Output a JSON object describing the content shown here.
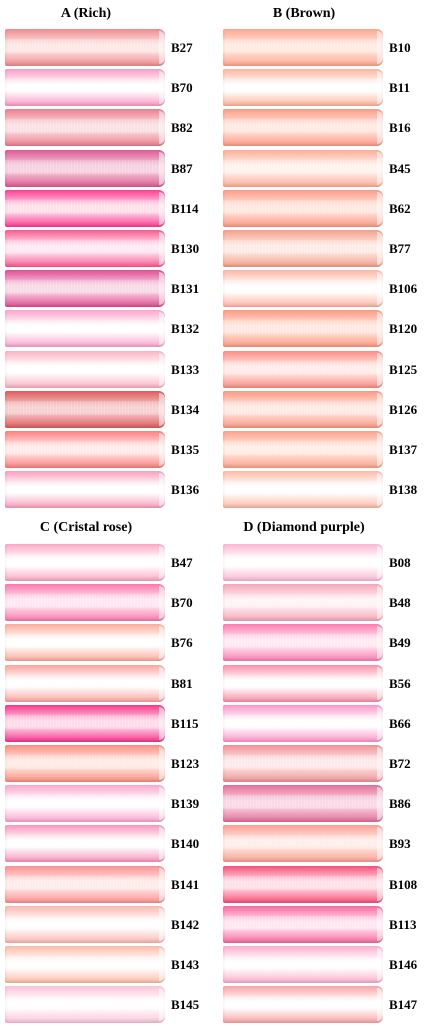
{
  "groups": [
    {
      "title": "A  (Rich)",
      "swatches": [
        {
          "code": "B27",
          "color": "#ef8c8e",
          "hi": "#fbe2e0"
        },
        {
          "code": "B70",
          "color": "#fb9bc4",
          "hi": "#ffffff"
        },
        {
          "code": "B82",
          "color": "#ee7e8e",
          "hi": "#f9d9dc"
        },
        {
          "code": "B87",
          "color": "#dd5c94",
          "hi": "#f4c5d8"
        },
        {
          "code": "B114",
          "color": "#fa3f94",
          "hi": "#ffd7e6"
        },
        {
          "code": "B130",
          "color": "#f95b92",
          "hi": "#ffe3ee"
        },
        {
          "code": "B131",
          "color": "#df4f94",
          "hi": "#f7cfe1"
        },
        {
          "code": "B132",
          "color": "#fca4cc",
          "hi": "#ffffff"
        },
        {
          "code": "B133",
          "color": "#fbb3c2",
          "hi": "#ffffff"
        },
        {
          "code": "B134",
          "color": "#e05c5e",
          "hi": "#f4c4c4"
        },
        {
          "code": "B135",
          "color": "#fd7f80",
          "hi": "#ffe6e3"
        },
        {
          "code": "B136",
          "color": "#fb9fbc",
          "hi": "#ffffff"
        }
      ]
    },
    {
      "title": "B (Brown)",
      "swatches": [
        {
          "code": "B10",
          "color": "#fda690",
          "hi": "#ffe4da"
        },
        {
          "code": "B11",
          "color": "#fdb59d",
          "hi": "#ffffff"
        },
        {
          "code": "B16",
          "color": "#fd9a84",
          "hi": "#ffe3da"
        },
        {
          "code": "B45",
          "color": "#fcae99",
          "hi": "#fff0ea"
        },
        {
          "code": "B62",
          "color": "#fc9c87",
          "hi": "#ffe1d8"
        },
        {
          "code": "B77",
          "color": "#f4a08b",
          "hi": "#fde7df"
        },
        {
          "code": "B106",
          "color": "#feb5a4",
          "hi": "#ffffff"
        },
        {
          "code": "B120",
          "color": "#fd9a82",
          "hi": "#ffe2d8"
        },
        {
          "code": "B125",
          "color": "#fd8d85",
          "hi": "#ffe6e1"
        },
        {
          "code": "B126",
          "color": "#fc9885",
          "hi": "#ffe4dc"
        },
        {
          "code": "B137",
          "color": "#fba28c",
          "hi": "#ffe8de"
        },
        {
          "code": "B138",
          "color": "#fdbaa8",
          "hi": "#ffffff"
        }
      ]
    },
    {
      "title": "C (Cristal rose)",
      "swatches": [
        {
          "code": "B47",
          "color": "#fca8c2",
          "hi": "#ffffff"
        },
        {
          "code": "B70",
          "color": "#fb7aae",
          "hi": "#ffe2ee"
        },
        {
          "code": "B76",
          "color": "#fdaa9c",
          "hi": "#ffffff"
        },
        {
          "code": "B81",
          "color": "#fca4a0",
          "hi": "#ffffff"
        },
        {
          "code": "B115",
          "color": "#f4378c",
          "hi": "#ffd2e4"
        },
        {
          "code": "B123",
          "color": "#fd8e80",
          "hi": "#ffe6e0"
        },
        {
          "code": "B139",
          "color": "#fda5cf",
          "hi": "#ffffff"
        },
        {
          "code": "B140",
          "color": "#fb95bc",
          "hi": "#ffffff"
        },
        {
          "code": "B141",
          "color": "#fd9191",
          "hi": "#ffe7e5"
        },
        {
          "code": "B142",
          "color": "#fdb7b0",
          "hi": "#ffffff"
        },
        {
          "code": "B143",
          "color": "#fdbca8",
          "hi": "#ffffff"
        },
        {
          "code": "B145",
          "color": "#fcc2d7",
          "hi": "#ffffff"
        }
      ]
    },
    {
      "title": "D (Diamond purple)",
      "swatches": [
        {
          "code": "B08",
          "color": "#fbb7d2",
          "hi": "#ffffff"
        },
        {
          "code": "B48",
          "color": "#f6a6b8",
          "hi": "#fff0f4"
        },
        {
          "code": "B49",
          "color": "#fb7eb3",
          "hi": "#ffe4f0"
        },
        {
          "code": "B56",
          "color": "#fb8fa8",
          "hi": "#ffffff"
        },
        {
          "code": "B66",
          "color": "#fc94ca",
          "hi": "#ffffff"
        },
        {
          "code": "B72",
          "color": "#ef9298",
          "hi": "#fde4e4"
        },
        {
          "code": "B86",
          "color": "#e46e9a",
          "hi": "#f9cfdf"
        },
        {
          "code": "B93",
          "color": "#fb9e92",
          "hi": "#ffe9e3"
        },
        {
          "code": "B108",
          "color": "#f9507a",
          "hi": "#ffd9e2"
        },
        {
          "code": "B113",
          "color": "#f9689f",
          "hi": "#ffe0ec"
        },
        {
          "code": "B146",
          "color": "#fcaecd",
          "hi": "#ffffff"
        },
        {
          "code": "B147",
          "color": "#fca3a5",
          "hi": "#ffffff"
        }
      ]
    }
  ]
}
